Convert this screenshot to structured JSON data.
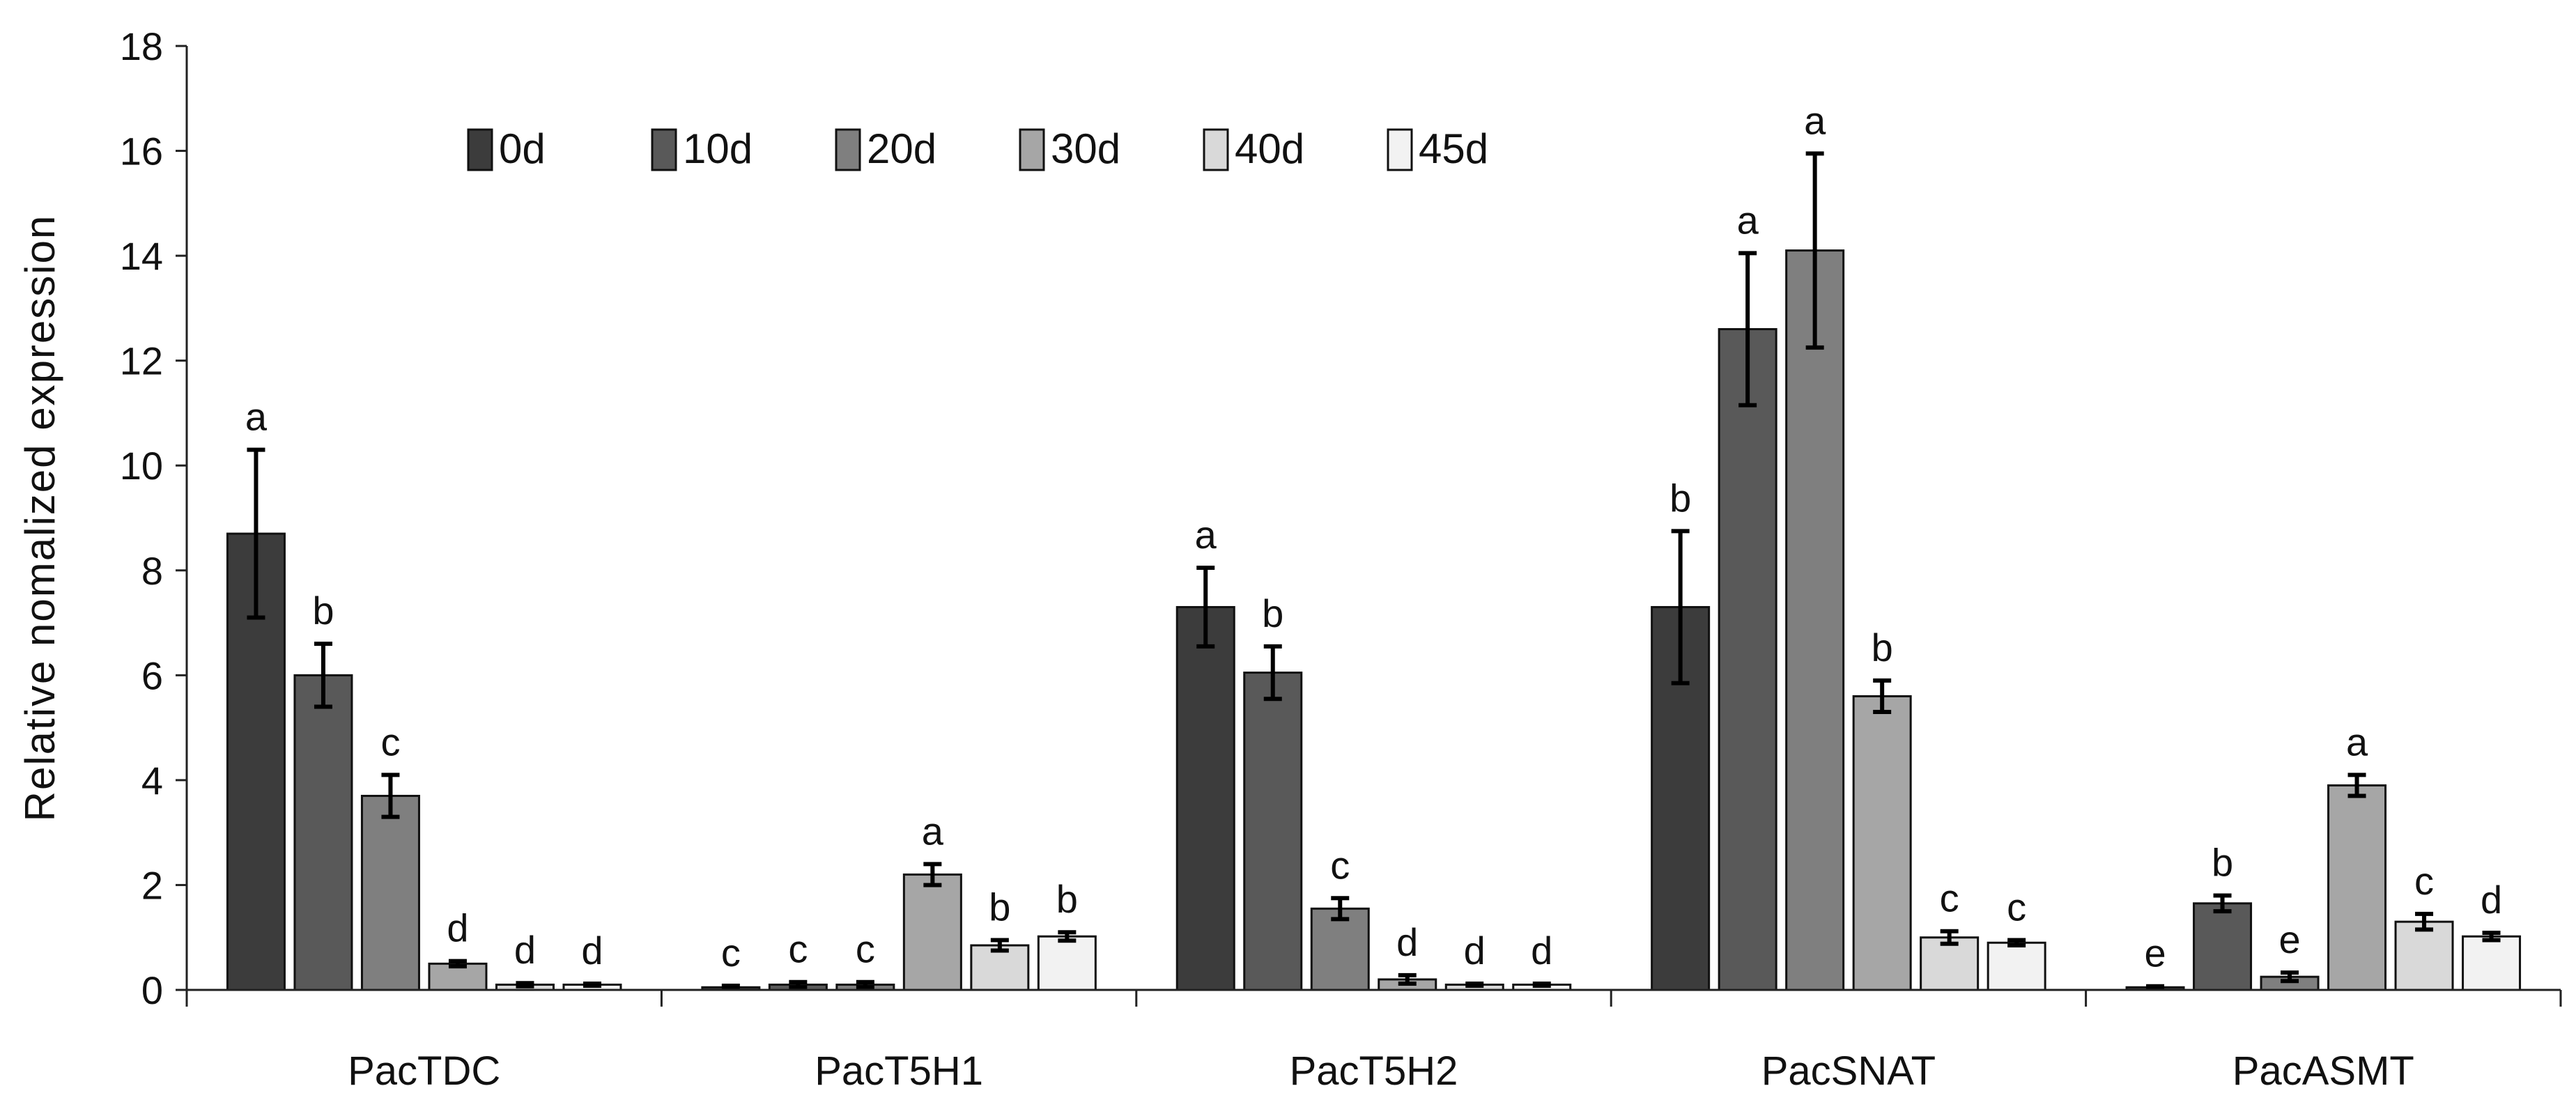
{
  "chart_data": {
    "type": "bar",
    "ylabel": "Relative nomalized  expression",
    "xlabel": "",
    "ylim": [
      0,
      18
    ],
    "yticks": [
      0,
      2,
      4,
      6,
      8,
      10,
      12,
      14,
      16,
      18
    ],
    "grid": false,
    "legend_position": "top",
    "categories": [
      "PacTDC",
      "PacT5H1",
      "PacT5H2",
      "PacSNAT",
      "PacASMT"
    ],
    "series": [
      {
        "name": "0d",
        "color": "#3c3c3c",
        "values": [
          8.7,
          0.05,
          7.3,
          7.3,
          0.05
        ],
        "errors": [
          1.6,
          0.03,
          0.75,
          1.45,
          0.02
        ],
        "labels": [
          "a",
          "c",
          "a",
          "b",
          "e"
        ]
      },
      {
        "name": "10d",
        "color": "#595959",
        "values": [
          6.0,
          0.1,
          6.05,
          12.6,
          1.65
        ],
        "errors": [
          0.6,
          0.05,
          0.5,
          1.45,
          0.15
        ],
        "labels": [
          "b",
          "c",
          "b",
          "a",
          "b"
        ]
      },
      {
        "name": "20d",
        "color": "#7f7f7f",
        "values": [
          3.7,
          0.1,
          1.55,
          14.1,
          0.25
        ],
        "errors": [
          0.4,
          0.05,
          0.2,
          1.85,
          0.08
        ],
        "labels": [
          "c",
          "c",
          "c",
          "a",
          "e"
        ]
      },
      {
        "name": "30d",
        "color": "#a6a6a6",
        "values": [
          0.5,
          2.2,
          0.2,
          5.6,
          3.9
        ],
        "errors": [
          0.05,
          0.2,
          0.08,
          0.3,
          0.2
        ],
        "labels": [
          "d",
          "a",
          "d",
          "b",
          "a"
        ]
      },
      {
        "name": "40d",
        "color": "#d9d9d9",
        "values": [
          0.1,
          0.85,
          0.1,
          1.0,
          1.3
        ],
        "errors": [
          0.03,
          0.1,
          0.02,
          0.12,
          0.15
        ],
        "labels": [
          "d",
          "b",
          "d",
          "c",
          "c"
        ]
      },
      {
        "name": "45d",
        "color": "#f2f2f2",
        "values": [
          0.1,
          1.02,
          0.1,
          0.9,
          1.02
        ],
        "errors": [
          0.02,
          0.08,
          0.02,
          0.05,
          0.07
        ],
        "labels": [
          "d",
          "b",
          "d",
          "c",
          "d"
        ]
      }
    ]
  }
}
